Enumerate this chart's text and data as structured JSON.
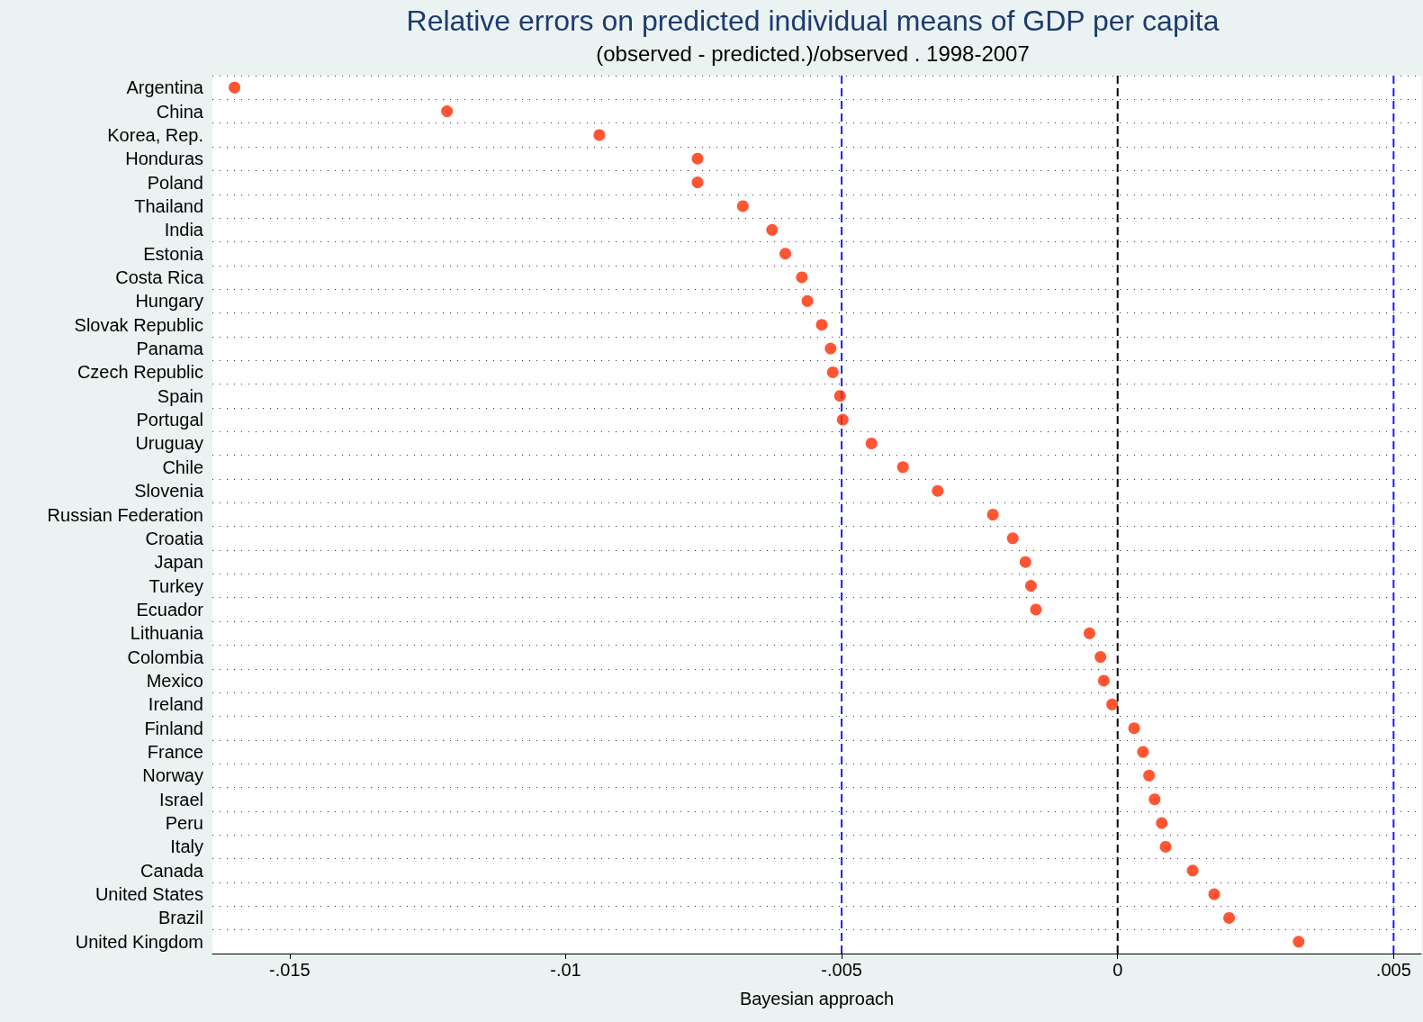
{
  "chart_data": {
    "type": "scatter",
    "orientation": "horizontal",
    "title": "Relative errors on predicted individual means of GDP per capita",
    "subtitle": "(observed - predicted.)/observed . 1998-2007",
    "xlabel": "Bayesian approach",
    "categories": [
      "Argentina",
      "China",
      "Korea, Rep.",
      "Honduras",
      "Poland",
      "Thailand",
      "India",
      "Estonia",
      "Costa Rica",
      "Hungary",
      "Slovak Republic",
      "Panama",
      "Czech Republic",
      "Spain",
      "Portugal",
      "Uruguay",
      "Chile",
      "Slovenia",
      "Russian Federation",
      "Croatia",
      "Japan",
      "Turkey",
      "Ecuador",
      "Lithuania",
      "Colombia",
      "Mexico",
      "Ireland",
      "Finland",
      "France",
      "Norway",
      "Israel",
      "Peru",
      "Italy",
      "Canada",
      "United States",
      "Brazil",
      "United Kingdom"
    ],
    "series": [
      {
        "color": "#ff2a00",
        "values": [
          -0.016,
          -0.01215,
          -0.00939,
          -0.00761,
          -0.00761,
          -0.00679,
          -0.00626,
          -0.00602,
          -0.00572,
          -0.00562,
          -0.00536,
          -0.0052,
          -0.00516,
          -0.00503,
          -0.00498,
          -0.00446,
          -0.00389,
          -0.00326,
          -0.00226,
          -0.0019,
          -0.00167,
          -0.00157,
          -0.00148,
          -0.00051,
          -0.00031,
          -0.00025,
          -0.0001,
          0.0003,
          0.00046,
          0.00057,
          0.00067,
          0.0008,
          0.00087,
          0.00136,
          0.00175,
          0.00202,
          0.00328
        ]
      }
    ],
    "xlim": [
      -0.0164,
      0.0055
    ],
    "xticks": [
      {
        "value": -0.015,
        "label": "-.015"
      },
      {
        "value": -0.01,
        "label": "-.01"
      },
      {
        "value": -0.005,
        "label": "-.005"
      },
      0,
      {
        "value": 0.005,
        "label": ".005"
      }
    ],
    "ref_lines": [
      {
        "axis": "x",
        "value": -0.005,
        "color": "#1a1aff",
        "line_style": "dashed"
      },
      {
        "axis": "x",
        "value": 0,
        "color": "#000000",
        "line_style": "dashed"
      },
      {
        "axis": "x",
        "value": 0.005,
        "color": "#1a1aff",
        "line_style": "dashed"
      }
    ],
    "grid": "y",
    "marker": "circle"
  }
}
